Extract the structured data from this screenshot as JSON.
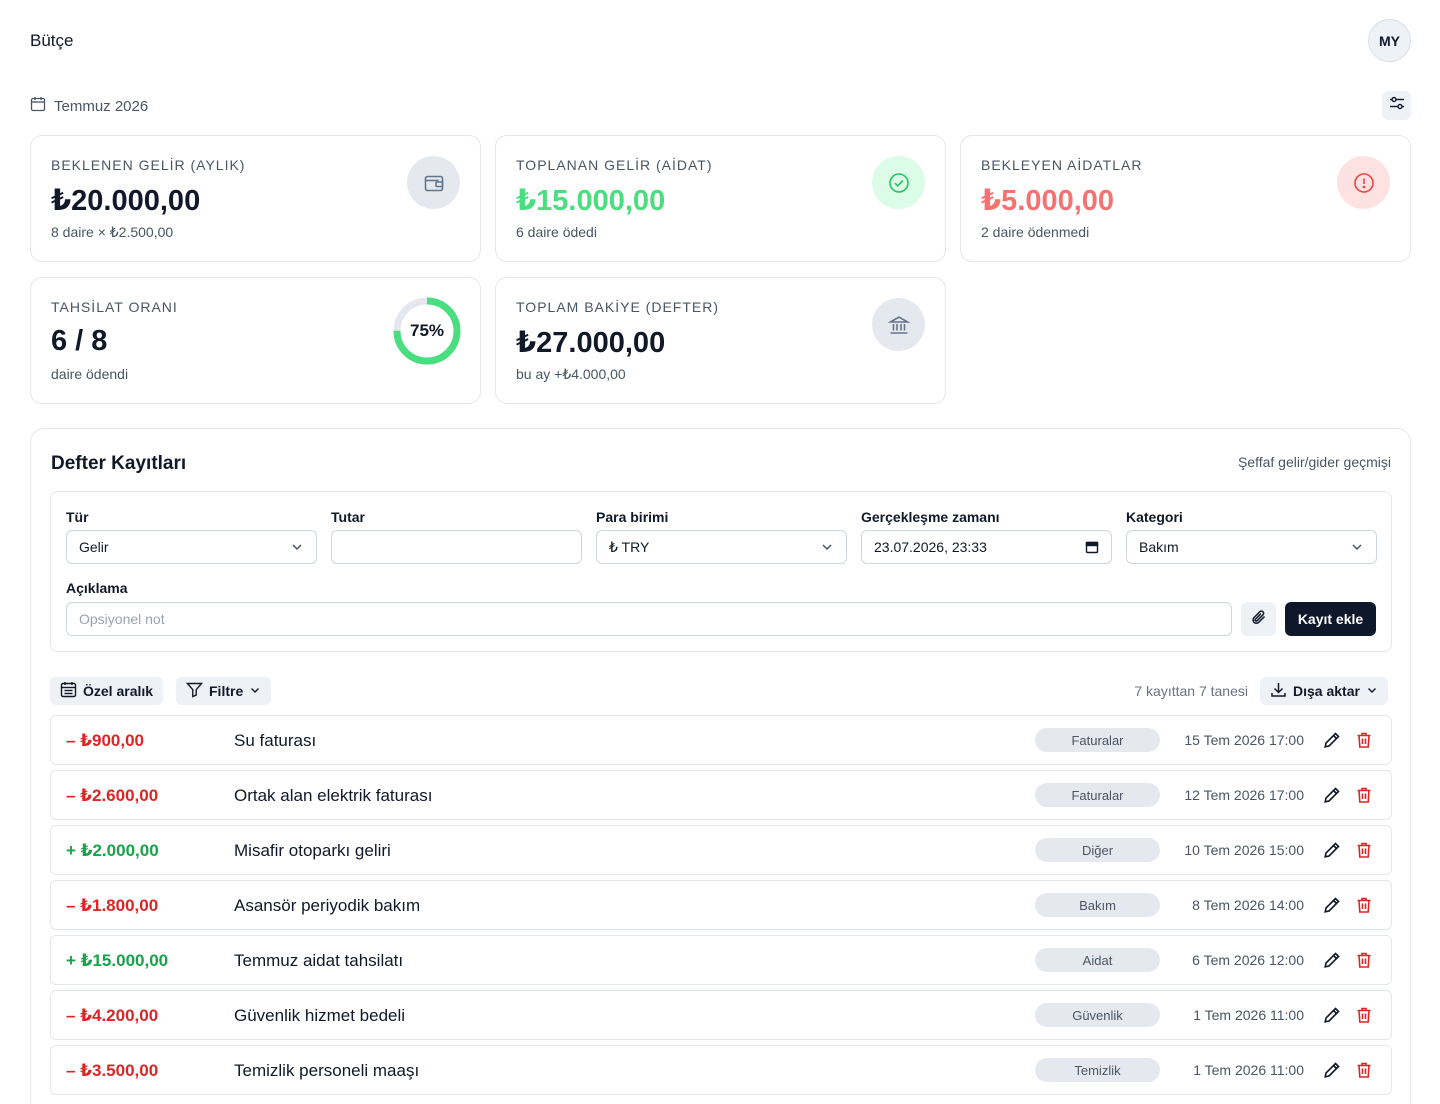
{
  "header": {
    "title": "Bütçe",
    "avatar_initials": "MY"
  },
  "period": {
    "month": "Temmuz 2026"
  },
  "cards": {
    "expected": {
      "label": "BEKLENEN GELİR (AYLIK)",
      "value": "₺20.000,00",
      "sub": "8 daire × ₺2.500,00",
      "icon": "wallet-icon"
    },
    "collected": {
      "label": "TOPLANAN GELİR (AİDAT)",
      "value": "₺15.000,00",
      "sub": "6 daire ödedi",
      "icon": "check-circle-icon"
    },
    "pending": {
      "label": "BEKLEYEN AİDATLAR",
      "value": "₺5.000,00",
      "sub": "2 daire ödenmedi",
      "icon": "alert-circle-icon"
    },
    "rate": {
      "label": "TAHSİLAT ORANI",
      "value": "6 / 8",
      "sub": "daire ödendi",
      "percent_text": "75%",
      "percent": 75
    },
    "balance": {
      "label": "TOPLAM BAKİYE (DEFTER)",
      "value": "₺27.000,00",
      "sub": "bu ay +₺4.000,00",
      "icon": "bank-icon"
    }
  },
  "colors": {
    "green": "#4ade80",
    "green_text": "#16a34a",
    "red": "#f87171",
    "red_text": "#dc2626",
    "dark": "#0f172a"
  },
  "ledger": {
    "title": "Defter Kayıtları",
    "subtitle": "Şeffaf gelir/gider geçmişi",
    "form": {
      "type_label": "Tür",
      "type_value": "Gelir",
      "amount_label": "Tutar",
      "amount_value": "",
      "currency_label": "Para birimi",
      "currency_value": "₺ TRY",
      "datetime_label": "Gerçekleşme zamanı",
      "datetime_value": "23.07.2026, 23:33",
      "category_label": "Kategori",
      "category_value": "Bakım",
      "description_label": "Açıklama",
      "description_placeholder": "Opsiyonel not",
      "add_button": "Kayıt ekle"
    },
    "toolbar": {
      "range_button": "Özel aralık",
      "filter_button": "Filtre",
      "count_text": "7 kayıttan 7 tanesi",
      "export_button": "Dışa aktar"
    },
    "rows": [
      {
        "amount": "– ₺900,00",
        "kind": "out",
        "description": "Su faturası",
        "category": "Faturalar",
        "date": "15 Tem 2026 17:00"
      },
      {
        "amount": "– ₺2.600,00",
        "kind": "out",
        "description": "Ortak alan elektrik faturası",
        "category": "Faturalar",
        "date": "12 Tem 2026 17:00"
      },
      {
        "amount": "+ ₺2.000,00",
        "kind": "in",
        "description": "Misafir otoparkı geliri",
        "category": "Diğer",
        "date": "10 Tem 2026 15:00"
      },
      {
        "amount": "– ₺1.800,00",
        "kind": "out",
        "description": "Asansör periyodik bakım",
        "category": "Bakım",
        "date": "8 Tem 2026 14:00"
      },
      {
        "amount": "+ ₺15.000,00",
        "kind": "in",
        "description": "Temmuz aidat tahsilatı",
        "category": "Aidat",
        "date": "6 Tem 2026 12:00"
      },
      {
        "amount": "– ₺4.200,00",
        "kind": "out",
        "description": "Güvenlik hizmet bedeli",
        "category": "Güvenlik",
        "date": "1 Tem 2026 11:00"
      },
      {
        "amount": "– ₺3.500,00",
        "kind": "out",
        "description": "Temizlik personeli maaşı",
        "category": "Temizlik",
        "date": "1 Tem 2026 11:00"
      }
    ]
  }
}
